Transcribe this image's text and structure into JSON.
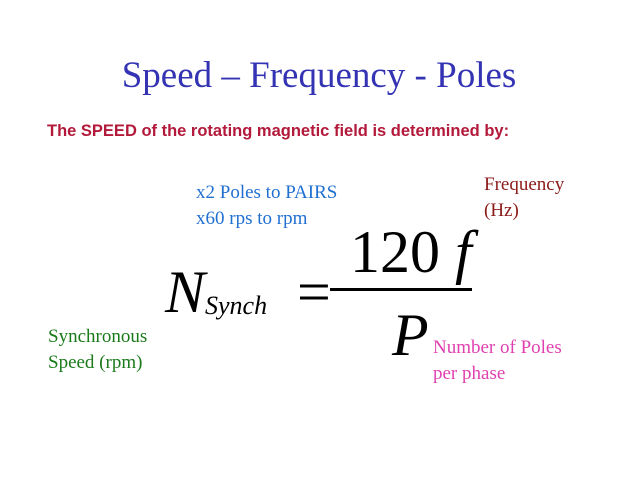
{
  "slide": {
    "title": "Speed – Frequency - Poles",
    "subtitle": "The SPEED of the rotating magnetic field is determined by:"
  },
  "equation": {
    "n": "N",
    "subscript": "Synch",
    "equals": "=",
    "numerator_number": "120",
    "numerator_var": "f",
    "denominator": "P"
  },
  "annotations": {
    "poles_pairs": "x2 Poles to PAIRS",
    "rps_rpm": "x60 rps to rpm",
    "frequency": "Frequency",
    "frequency_unit": "(Hz)",
    "sync_line1": "Synchronous",
    "sync_line2": "Speed (rpm)",
    "poles_line1": "Number of Poles",
    "poles_line2": "per phase"
  },
  "colors": {
    "title": "#3333b3",
    "subtitle": "#b3193a",
    "poles_note": "#1f6fd1",
    "frequency_note": "#8b1a1a",
    "sync_note": "#1a7a1a",
    "p_note": "#e040b0"
  }
}
